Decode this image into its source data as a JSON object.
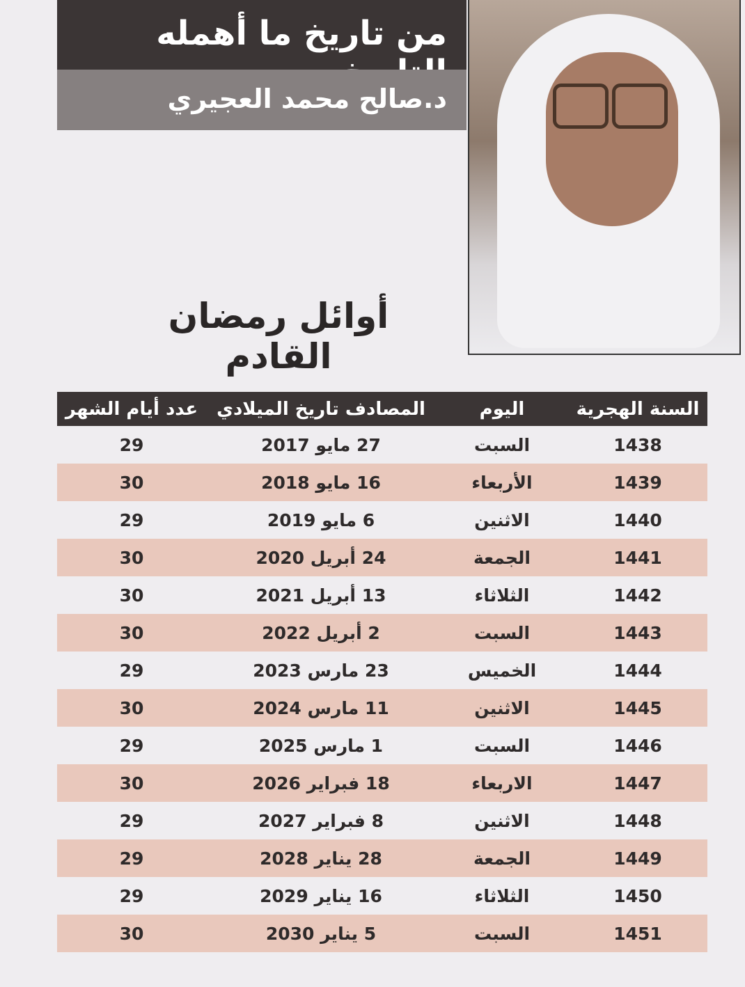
{
  "header": {
    "column_title": "من تاريخ ما أهمله التاريخ",
    "author": "د.صالح محمد العجيري"
  },
  "article": {
    "heading": "أوائل رمضان القادم"
  },
  "table": {
    "headers": [
      "السنة الهجرية",
      "اليوم",
      "المصادف تاريخ الميلادي",
      "عدد أيام الشهر"
    ],
    "rows": [
      [
        "1438",
        "السبت",
        "27 مايو 2017",
        "29"
      ],
      [
        "1439",
        "الأربعاء",
        "16 مايو 2018",
        "30"
      ],
      [
        "1440",
        "الاثنين",
        "6 مايو 2019",
        "29"
      ],
      [
        "1441",
        "الجمعة",
        "24 أبريل 2020",
        "30"
      ],
      [
        "1442",
        "الثلاثاء",
        "13 أبريل 2021",
        "30"
      ],
      [
        "1443",
        "السبت",
        "2 أبريل 2022",
        "30"
      ],
      [
        "1444",
        "الخميس",
        "23 مارس 2023",
        "29"
      ],
      [
        "1445",
        "الاثنين",
        "11 مارس 2024",
        "30"
      ],
      [
        "1446",
        "السبت",
        "1 مارس 2025",
        "29"
      ],
      [
        "1447",
        "الاربعاء",
        "18 فبراير 2026",
        "30"
      ],
      [
        "1448",
        "الاثنين",
        "8 فبراير 2027",
        "29"
      ],
      [
        "1449",
        "الجمعة",
        "28 يناير 2028",
        "29"
      ],
      [
        "1450",
        "الثلاثاء",
        "16 يناير 2029",
        "29"
      ],
      [
        "1451",
        "السبت",
        "5 يناير 2030",
        "30"
      ]
    ]
  },
  "colors": {
    "header_dark": "#3b3535",
    "header_grey": "#868080",
    "row_stripe": "#e9c8bc",
    "paper": "#efedf0"
  }
}
